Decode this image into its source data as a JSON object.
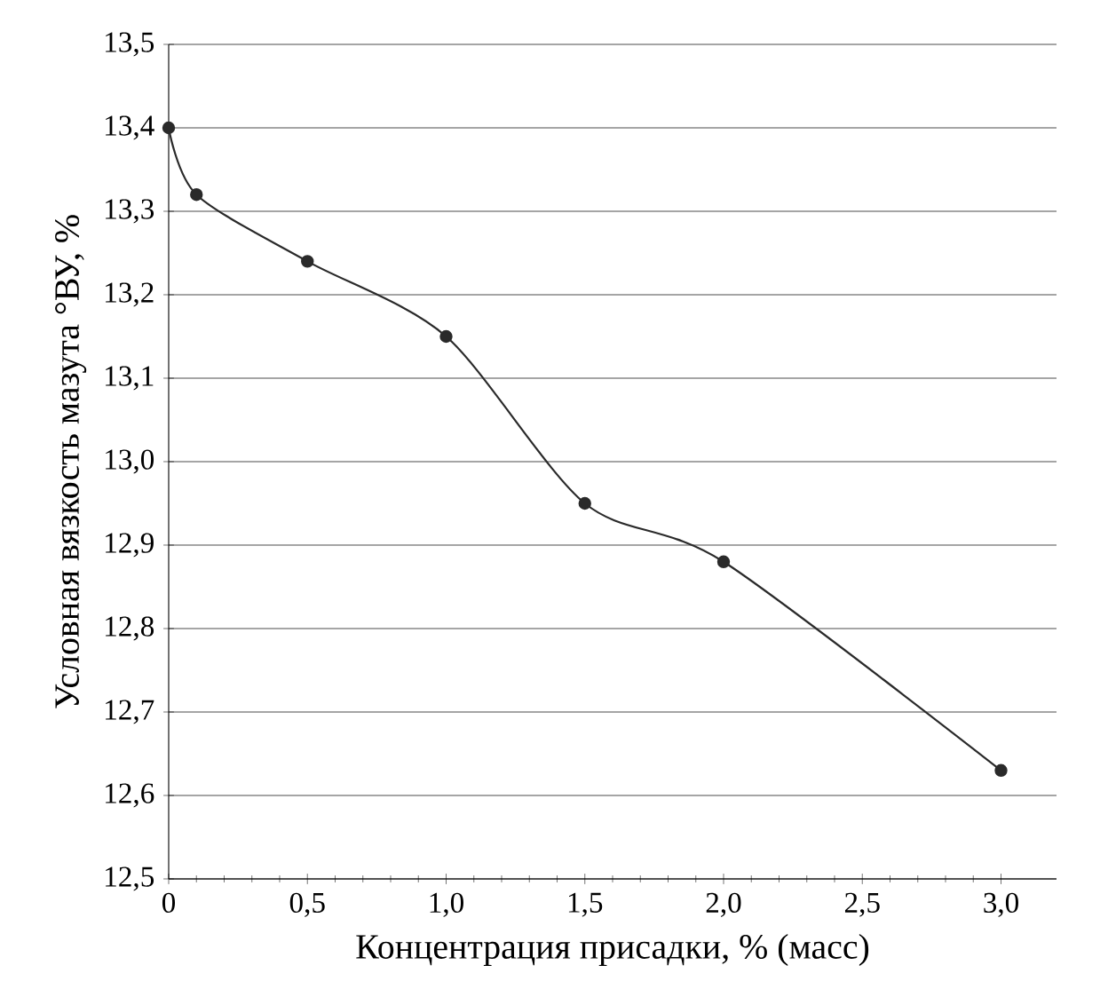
{
  "chart_data": {
    "type": "line",
    "xlabel": "Концентрация присадки, % (масс)",
    "ylabel": "Условная вязкость мазута °ВУ, %",
    "x": [
      0,
      0.1,
      0.5,
      1.0,
      1.5,
      2.0,
      3.0
    ],
    "series": [
      {
        "color": "#2a2a2a",
        "values": [
          13.4,
          13.32,
          13.24,
          13.15,
          12.95,
          12.88,
          12.63
        ]
      }
    ],
    "xlim": [
      0,
      3.2
    ],
    "xticks": [
      {
        "value": 0,
        "label": "0"
      },
      {
        "value": 0.5,
        "label": "0,5"
      },
      {
        "value": 1.0,
        "label": "1,0"
      },
      {
        "value": 1.5,
        "label": "1,5"
      },
      {
        "value": 2.0,
        "label": "2,0"
      },
      {
        "value": 2.5,
        "label": "2,5"
      },
      {
        "value": 3.0,
        "label": "3,0"
      }
    ],
    "ylim": [
      12.5,
      13.5
    ],
    "yticks": [
      {
        "value": 12.5,
        "label": "12,5"
      },
      {
        "value": 12.6,
        "label": "12,6"
      },
      {
        "value": 12.7,
        "label": "12,7"
      },
      {
        "value": 12.8,
        "label": "12,8"
      },
      {
        "value": 12.9,
        "label": "12,9"
      },
      {
        "value": 13.0,
        "label": "13,0"
      },
      {
        "value": 13.1,
        "label": "13,1"
      },
      {
        "value": 13.2,
        "label": "13,2"
      },
      {
        "value": 13.3,
        "label": "13,3"
      },
      {
        "value": 13.4,
        "label": "13,4"
      },
      {
        "value": 13.5,
        "label": "13,5"
      }
    ],
    "grid": "y",
    "marker": "circle",
    "line_style": "solid"
  }
}
